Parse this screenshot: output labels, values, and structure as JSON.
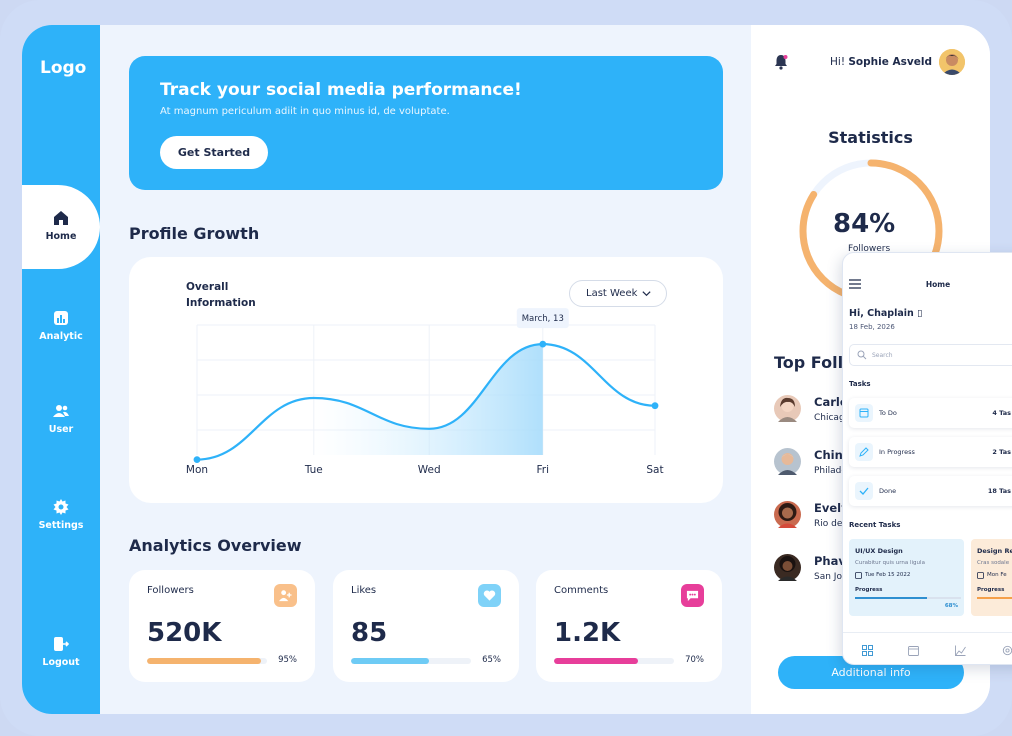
{
  "sidebar": {
    "logo": "Logo",
    "items": [
      {
        "label": "Home"
      },
      {
        "label": "Analytic"
      },
      {
        "label": "User"
      },
      {
        "label": "Settings"
      },
      {
        "label": "Logout"
      }
    ]
  },
  "hero": {
    "title": "Track your social media performance!",
    "subtitle": "At magnum periculum adiit in quo minus id, de voluptate.",
    "button": "Get Started"
  },
  "profile_growth": {
    "title": "Profile Growth",
    "card_title": "Overall Information",
    "dropdown": "Last Week",
    "tooltip": "March, 13"
  },
  "chart_data": {
    "type": "area",
    "categories": [
      "Mon",
      "Tue",
      "Wed",
      "Fri",
      "Sat"
    ],
    "series": [
      {
        "values": [
          1,
          5,
          3,
          8.5,
          4.5
        ]
      }
    ],
    "highlight": "Fri",
    "tooltip": "March, 13",
    "grid": true
  },
  "analytics": {
    "title": "Analytics Overview",
    "cards": [
      {
        "label": "Followers",
        "value": "520K",
        "percent_label": "95%",
        "percent": 0.95,
        "color": "#f5b36e",
        "icon": "user-plus-icon"
      },
      {
        "label": "Likes",
        "value": "85",
        "percent_label": "65%",
        "percent": 0.65,
        "color": "#6ecbf5",
        "icon": "heart-icon"
      },
      {
        "label": "Comments",
        "value": "1.2K",
        "percent_label": "70%",
        "percent": 0.7,
        "color": "#e73e9a",
        "icon": "chat-icon"
      }
    ]
  },
  "right": {
    "greeting_prefix": "Hi!",
    "user_name": "Sophie Asveld",
    "statistics_title": "Statistics",
    "ring_value": "84%",
    "ring_fraction": 0.84,
    "ring_sub": "Followers",
    "top_followers_title": "Top Follo",
    "followers": [
      {
        "name": "Carlo",
        "location": "Chicag"
      },
      {
        "name": "Chin",
        "location": "Philade"
      },
      {
        "name": "Evely",
        "location": "Rio de"
      },
      {
        "name": "Phav",
        "location": "San Jo"
      }
    ],
    "additional_button": "Additional info"
  },
  "phone": {
    "title": "Home",
    "greeting": "Hi, Chaplain ▯",
    "date": "18 Feb, 2026",
    "search_placeholder": "Search",
    "tasks_title": "Tasks",
    "tasks": [
      {
        "label": "To Do",
        "count": "4 Tas"
      },
      {
        "label": "In Progress",
        "count": "2 Tas"
      },
      {
        "label": "Done",
        "count": "18 Tas"
      }
    ],
    "recent_title": "Recent Tasks",
    "recent": [
      {
        "title": "UI/UX Design",
        "sub": "Curabitur quis urna ligula",
        "date": "Tue Feb 15 2022",
        "progress_label": "Progress",
        "progress": 0.68,
        "percent": "68%"
      },
      {
        "title": "Design Re",
        "sub": "Cras sodale",
        "date": "Mon Fe",
        "progress_label": "Progress",
        "progress": 0.6
      }
    ]
  }
}
